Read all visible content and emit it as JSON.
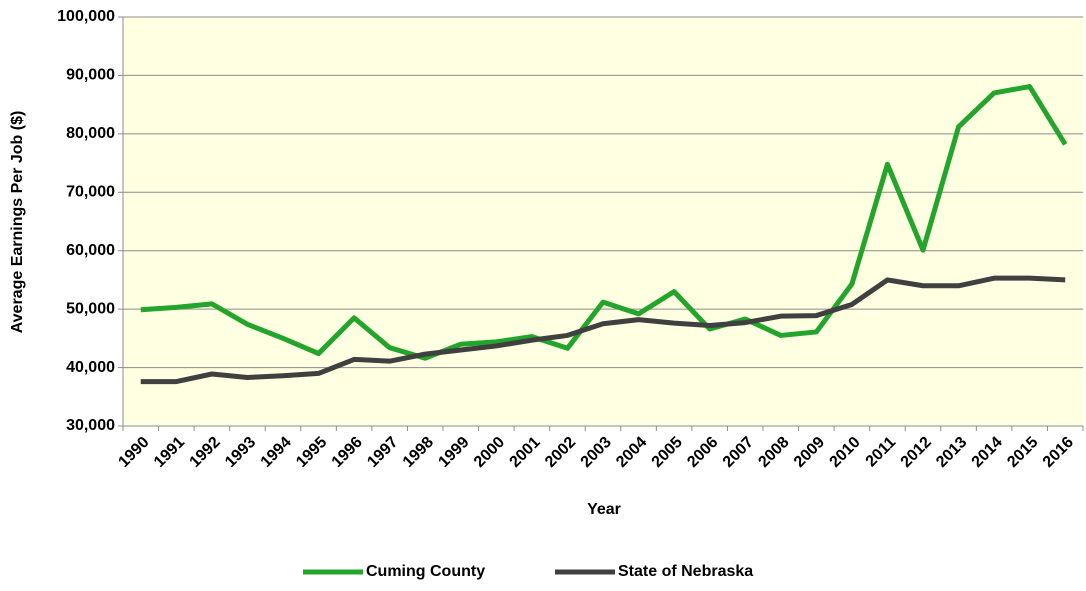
{
  "chart_data": {
    "type": "line",
    "x_label": "Year",
    "y_label": "Average Earnings Per Job ($)",
    "categories": [
      "1990",
      "1991",
      "1992",
      "1993",
      "1994",
      "1995",
      "1996",
      "1997",
      "1998",
      "1999",
      "2000",
      "2001",
      "2002",
      "2003",
      "2004",
      "2005",
      "2006",
      "2007",
      "2008",
      "2009",
      "2010",
      "2011",
      "2012",
      "2013",
      "2014",
      "2015",
      "2016"
    ],
    "series": [
      {
        "name": "Cuming County",
        "color": "#22a52a",
        "values": [
          49900,
          50300,
          50900,
          47400,
          45000,
          42400,
          48500,
          43400,
          41600,
          44000,
          44400,
          45300,
          43300,
          51200,
          49200,
          53000,
          46600,
          48300,
          45500,
          46100,
          54300,
          74800,
          60100,
          81200,
          87000,
          88100,
          78200
        ]
      },
      {
        "name": "State of Nebraska",
        "color": "#404040",
        "values": [
          37600,
          37600,
          38900,
          38300,
          38600,
          39000,
          41400,
          41100,
          42300,
          43000,
          43700,
          44700,
          45500,
          47500,
          48200,
          47600,
          47200,
          47700,
          48800,
          48900,
          50800,
          55000,
          54000,
          54000,
          55300,
          55300,
          55000
        ]
      }
    ],
    "ylim": [
      30000,
      100000
    ],
    "yticks": [
      {
        "value": 30000,
        "label": "30,000"
      },
      {
        "value": 40000,
        "label": "40,000"
      },
      {
        "value": 50000,
        "label": "50,000"
      },
      {
        "value": 60000,
        "label": "60,000"
      },
      {
        "value": 70000,
        "label": "70,000"
      },
      {
        "value": 80000,
        "label": "80,000"
      },
      {
        "value": 90000,
        "label": "90,000"
      },
      {
        "value": 100000,
        "label": "100,000"
      }
    ],
    "grid": true,
    "legend": "bottom",
    "background": "#ffffe1"
  }
}
